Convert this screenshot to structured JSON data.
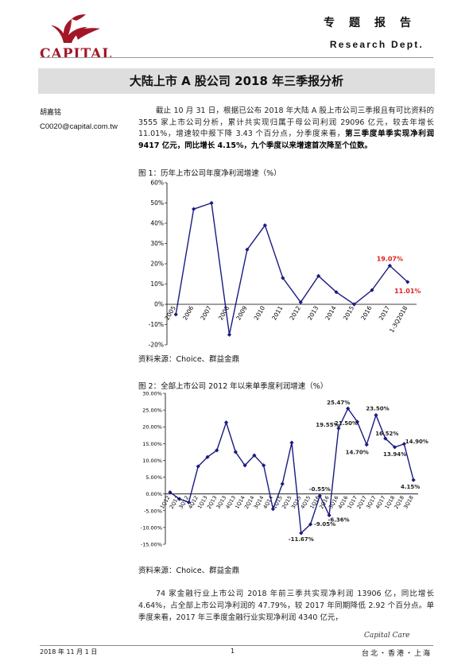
{
  "header": {
    "logo_text": "CAPITAL",
    "cn_label": "专题报告",
    "en_label": "Research Dept."
  },
  "title": "大陆上市 A 股公司 2018 年三季报分析",
  "author": {
    "name": "胡嘉铭",
    "email": "C0020@capital.com.tw"
  },
  "intro": {
    "normal": "截止 10 月 31 日，根据已公布 2018 年大陆 A 股上市公司三季报且有可比资料的 3555 家上市公司分析，累计共实现归属于母公司利润 29096 亿元，较去年增长 11.01%，增速较中报下降 3.43 个百分点，分季度来看，",
    "bold": "第三季度单季实现净利润 9417 亿元，同比增长 4.15%，九个季度以来增速首次降至个位数。"
  },
  "chart1": {
    "caption": "图 1：历年上市公司年度净利润增速（%）",
    "source": "资料来源：Choice、群益金鼎"
  },
  "chart2": {
    "caption": "图 2：全部上市公司 2012 年以来单季度利润增速（%）",
    "source": "资料来源：Choice、群益金鼎"
  },
  "para2": "74 家金融行业上市公司 2018 年前三季共实现净利润 13906 亿，同比增长 4.64%，占全部上市公司净利润的 47.79%，较 2017 年同期降低 2.92 个百分点。单季度来看，2017 年三季度金融行业实现净利润 4340 亿元，",
  "footer": {
    "date": "2018 年 11 月 1 日",
    "page": "1",
    "brand": "Capital Care",
    "locations": "台北・香港・上海"
  },
  "chart_data": [
    {
      "type": "line",
      "x": [
        "2005",
        "2006",
        "2007",
        "2008",
        "2009",
        "2010",
        "2011",
        "2012",
        "2013",
        "2014",
        "2015",
        "2016",
        "2017",
        "1-3Q2018"
      ],
      "y": [
        -5,
        47,
        50,
        -15,
        27,
        39,
        13,
        1,
        14,
        6,
        0,
        7,
        19.07,
        11.01
      ],
      "ylim": [
        -20,
        60
      ],
      "yticks": [
        "-20%",
        "-10%",
        "0%",
        "10%",
        "20%",
        "30%",
        "40%",
        "50%",
        "60%"
      ],
      "annotations": [
        "19.07%",
        "11.01%"
      ],
      "color": "#1a1a80"
    },
    {
      "type": "line",
      "x": [
        "1Q12",
        "2Q12",
        "3Q12",
        "4Q12",
        "1Q13",
        "2Q13",
        "3Q13",
        "4Q13",
        "1Q14",
        "2Q14",
        "3Q14",
        "4Q14",
        "1Q15",
        "2Q15",
        "3Q15",
        "4Q15",
        "1Q16",
        "2Q16",
        "3Q16",
        "4Q16",
        "1Q17",
        "2Q17",
        "3Q17",
        "4Q17",
        "1Q18",
        "2Q18",
        "3Q18"
      ],
      "y": [
        0.5,
        -1.5,
        -2.5,
        8.2,
        11,
        13,
        21.3,
        12.5,
        8.5,
        11.5,
        8.5,
        -4.5,
        3,
        15.3,
        -11.67,
        -9.05,
        -0.55,
        -6.36,
        19.55,
        25.47,
        21.5,
        14.7,
        23.5,
        16.52,
        13.94,
        14.9,
        4.15
      ],
      "ylim": [
        -15,
        30
      ],
      "yticks": [
        "-15.00%",
        "-10.00%",
        "-5.00%",
        "0.00%",
        "5.00%",
        "10.00%",
        "15.00%",
        "20.00%",
        "25.00%",
        "30.00%"
      ],
      "annotations": [
        "25.47%",
        "23.50%",
        "19.55%",
        "21.50%",
        "16.52%",
        "14.90%",
        "14.70%",
        "13.94%",
        "-0.55%",
        "-9.05%",
        "-6.36%",
        "-11.67%",
        "4.15%"
      ],
      "color": "#1a1a80"
    }
  ]
}
